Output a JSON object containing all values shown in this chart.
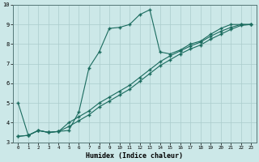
{
  "xlabel": "Humidex (Indice chaleur)",
  "bg_color": "#cce8e8",
  "grid_color": "#aacccc",
  "line_color": "#1a6b5e",
  "xlim": [
    -0.5,
    23.5
  ],
  "ylim": [
    3,
    10
  ],
  "xticks": [
    0,
    1,
    2,
    3,
    4,
    5,
    6,
    7,
    8,
    9,
    10,
    11,
    12,
    13,
    14,
    15,
    16,
    17,
    18,
    19,
    20,
    21,
    22,
    23
  ],
  "yticks": [
    3,
    4,
    5,
    6,
    7,
    8,
    9,
    10
  ],
  "series1_x": [
    0,
    1,
    2,
    3,
    4,
    5,
    6,
    7,
    8,
    9,
    10,
    11,
    12,
    13,
    14,
    15,
    16,
    17,
    18,
    19,
    20,
    21,
    22,
    23
  ],
  "series1_y": [
    5.0,
    3.35,
    3.6,
    3.5,
    3.55,
    3.6,
    4.55,
    6.8,
    7.6,
    8.8,
    8.85,
    9.0,
    9.5,
    9.75,
    7.6,
    7.5,
    7.7,
    8.0,
    8.15,
    8.5,
    8.8,
    9.0,
    9.0,
    9.0
  ],
  "series2_x": [
    0,
    1,
    2,
    3,
    4,
    5,
    6,
    7,
    8,
    9,
    10,
    11,
    12,
    13,
    14,
    15,
    16,
    17,
    18,
    19,
    20,
    21,
    22,
    23
  ],
  "series2_y": [
    3.3,
    3.35,
    3.6,
    3.5,
    3.55,
    4.0,
    4.3,
    4.6,
    5.0,
    5.3,
    5.6,
    5.9,
    6.3,
    6.7,
    7.1,
    7.4,
    7.65,
    7.9,
    8.1,
    8.4,
    8.65,
    8.85,
    9.0,
    9.0
  ],
  "series3_x": [
    0,
    1,
    2,
    3,
    4,
    5,
    6,
    7,
    8,
    9,
    10,
    11,
    12,
    13,
    14,
    15,
    16,
    17,
    18,
    19,
    20,
    21,
    22,
    23
  ],
  "series3_y": [
    3.3,
    3.35,
    3.6,
    3.5,
    3.55,
    3.8,
    4.1,
    4.4,
    4.8,
    5.1,
    5.4,
    5.7,
    6.1,
    6.5,
    6.9,
    7.2,
    7.5,
    7.75,
    7.95,
    8.25,
    8.5,
    8.75,
    8.95,
    9.0
  ]
}
